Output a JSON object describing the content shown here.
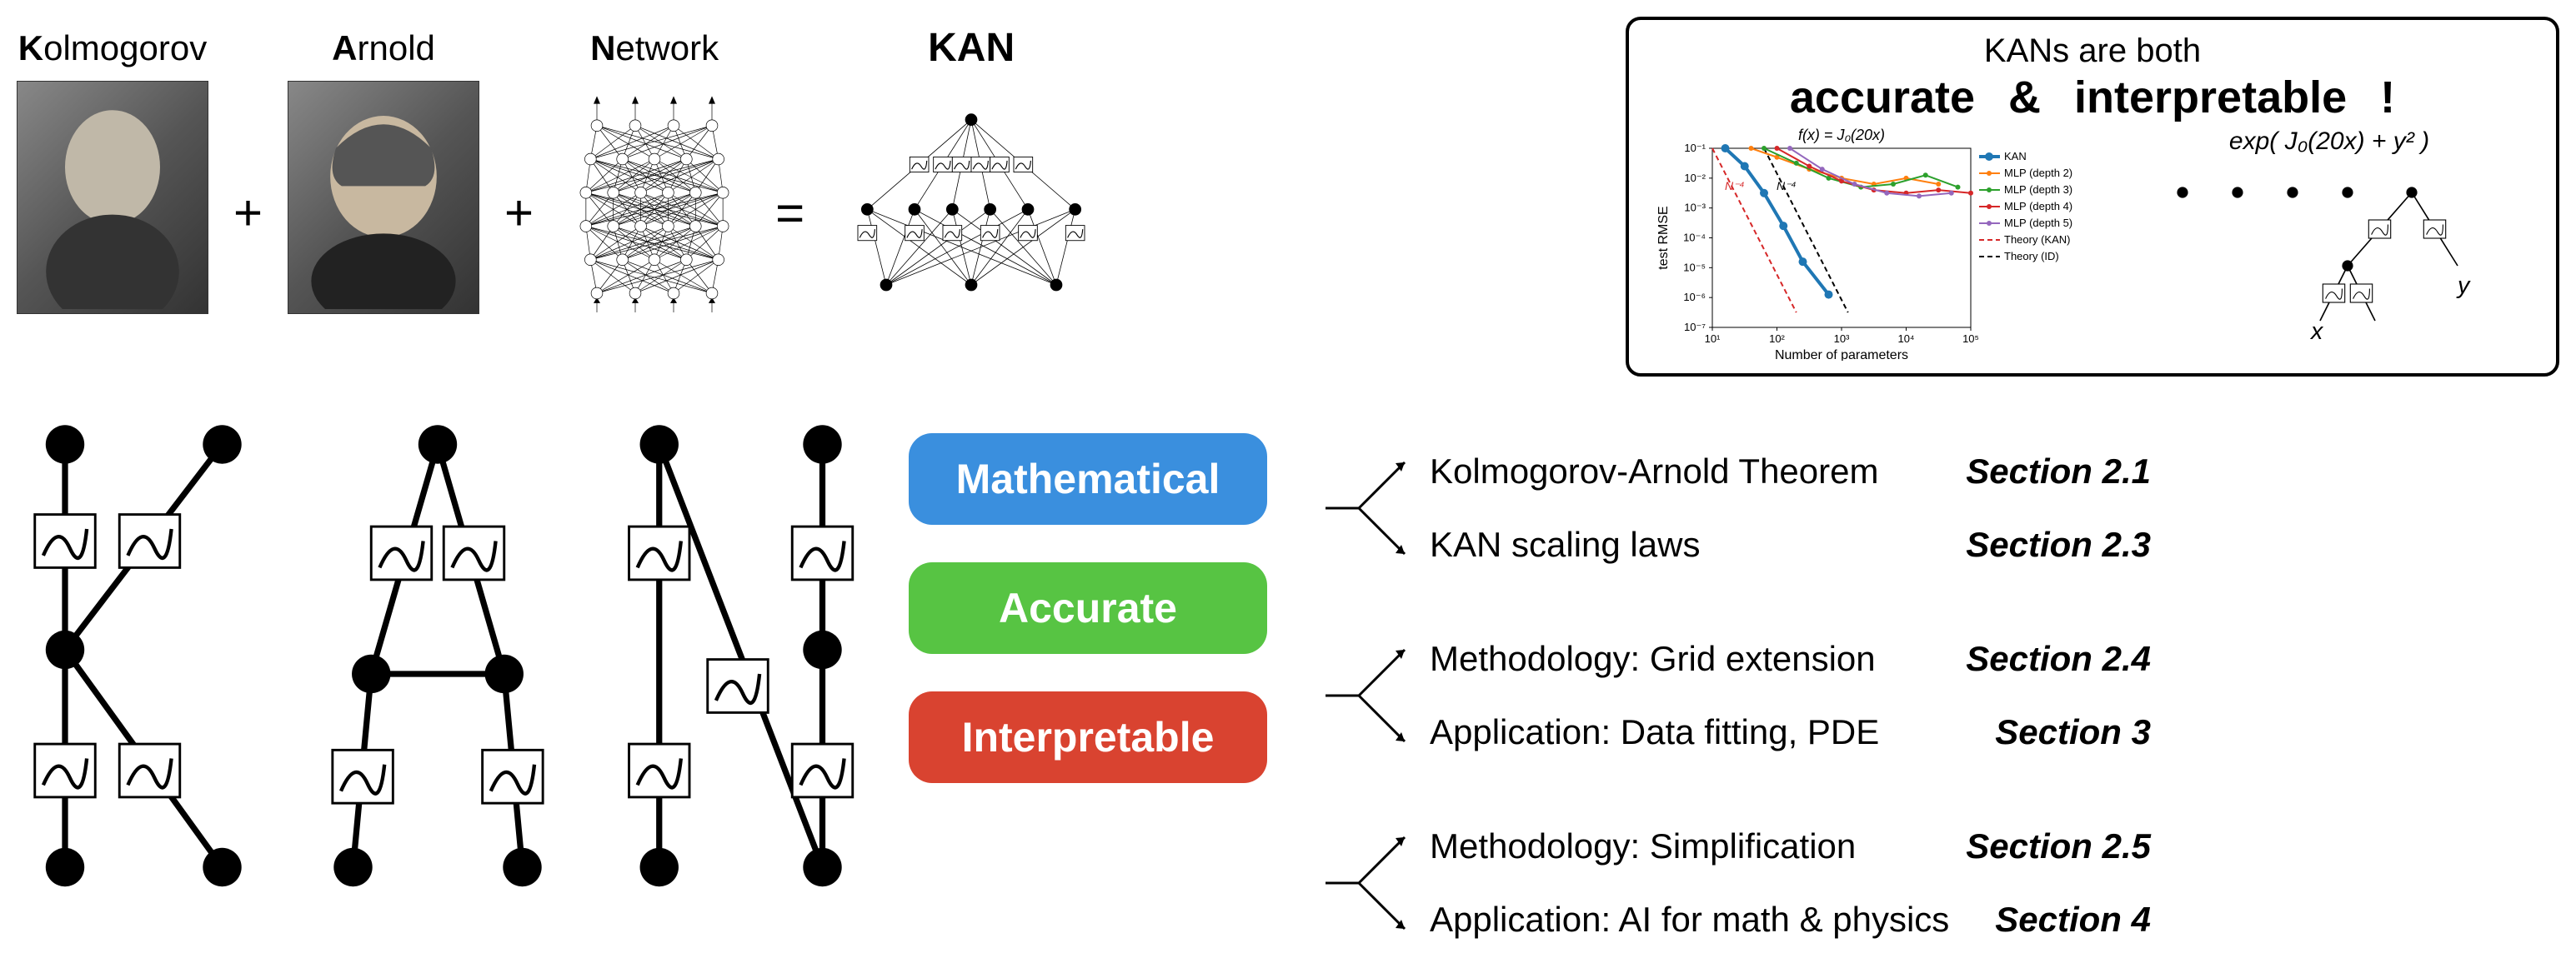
{
  "equation": {
    "k_label_bold": "K",
    "k_label_rest": "olmogorov",
    "a_label_bold": "A",
    "a_label_rest": "rnold",
    "n_label_bold": "N",
    "n_label_rest": "etwork",
    "plus": "+",
    "equals": "=",
    "kan_label": "KAN"
  },
  "summary": {
    "intro": "KANs are both",
    "word1": "accurate",
    "amp": "&",
    "word2": "interpretable",
    "bang": "!",
    "chart": {
      "title": "f(x) = J₀(20x)",
      "xlabel": "Number of parameters",
      "ylabel": "test RMSE",
      "xlim_log": [
        1,
        5
      ],
      "ylim_log": [
        -7,
        -1
      ],
      "xticks": [
        "10¹",
        "10²",
        "10³",
        "10⁴",
        "10⁵"
      ],
      "yticks": [
        "10⁻¹",
        "10⁻²",
        "10⁻³",
        "10⁻⁴",
        "10⁻⁵",
        "10⁻⁶",
        "10⁻⁷"
      ],
      "background_color": "#ffffff",
      "grid_color": "#dddddd",
      "series": [
        {
          "name": "KAN",
          "color": "#1f77b4",
          "linewidth": 4,
          "points": [
            [
              1.2,
              -1
            ],
            [
              1.5,
              -1.6
            ],
            [
              1.8,
              -2.5
            ],
            [
              2.1,
              -3.6
            ],
            [
              2.4,
              -4.8
            ],
            [
              2.8,
              -5.9
            ]
          ]
        },
        {
          "name": "MLP (depth 2)",
          "color": "#ff7f0e",
          "linewidth": 2,
          "points": [
            [
              1.6,
              -1
            ],
            [
              2.0,
              -1.3
            ],
            [
              2.5,
              -1.7
            ],
            [
              3.0,
              -2.0
            ],
            [
              3.5,
              -2.2
            ],
            [
              4.0,
              -2.0
            ],
            [
              4.5,
              -2.2
            ]
          ]
        },
        {
          "name": "MLP (depth 3)",
          "color": "#2ca02c",
          "linewidth": 2,
          "points": [
            [
              1.8,
              -1
            ],
            [
              2.3,
              -1.5
            ],
            [
              2.8,
              -2.0
            ],
            [
              3.3,
              -2.3
            ],
            [
              3.8,
              -2.2
            ],
            [
              4.3,
              -1.9
            ],
            [
              4.8,
              -2.3
            ]
          ]
        },
        {
          "name": "MLP (depth 4)",
          "color": "#d62728",
          "linewidth": 2,
          "points": [
            [
              2.0,
              -1
            ],
            [
              2.5,
              -1.6
            ],
            [
              3.0,
              -2.1
            ],
            [
              3.5,
              -2.4
            ],
            [
              4.0,
              -2.5
            ],
            [
              4.5,
              -2.4
            ],
            [
              5.0,
              -2.5
            ]
          ]
        },
        {
          "name": "MLP (depth 5)",
          "color": "#9467bd",
          "linewidth": 2,
          "points": [
            [
              2.2,
              -1
            ],
            [
              2.7,
              -1.7
            ],
            [
              3.2,
              -2.2
            ],
            [
              3.7,
              -2.5
            ],
            [
              4.2,
              -2.6
            ],
            [
              4.7,
              -2.5
            ]
          ]
        }
      ],
      "theory_lines": [
        {
          "name": "Theory (KAN)",
          "label": "N⁻⁴",
          "color": "#d62728",
          "dash": "6,4",
          "points": [
            [
              1.0,
              -1
            ],
            [
              2.3,
              -6.5
            ]
          ]
        },
        {
          "name": "Theory (ID)",
          "label": "N⁻⁴",
          "color": "#000000",
          "dash": "6,4",
          "points": [
            [
              1.8,
              -1
            ],
            [
              3.1,
              -6.5
            ]
          ]
        }
      ]
    },
    "formula": "exp( J₀(20x) + y² )",
    "xvar": "x",
    "yvar": "y"
  },
  "pills": [
    {
      "label": "Mathematical",
      "color": "#3a8fde",
      "items": [
        {
          "text": "Kolmogorov-Arnold Theorem",
          "section": "Section 2.1"
        },
        {
          "text": "KAN scaling laws",
          "section": "Section 2.3"
        }
      ]
    },
    {
      "label": "Accurate",
      "color": "#57c443",
      "items": [
        {
          "text": "Methodology: Grid extension",
          "section": "Section 2.4"
        },
        {
          "text": "Application: Data fitting, PDE",
          "section": "Section 3"
        }
      ]
    },
    {
      "label": "Interpretable",
      "color": "#d94330",
      "items": [
        {
          "text": "Methodology: Simplification",
          "section": "Section 2.5"
        },
        {
          "text": "Application: AI for math & physics",
          "section": "Section 4"
        }
      ]
    }
  ],
  "colors": {
    "text": "#000000",
    "node_fill": "#000000",
    "node_stroke": "#000000",
    "line": "#000000"
  }
}
